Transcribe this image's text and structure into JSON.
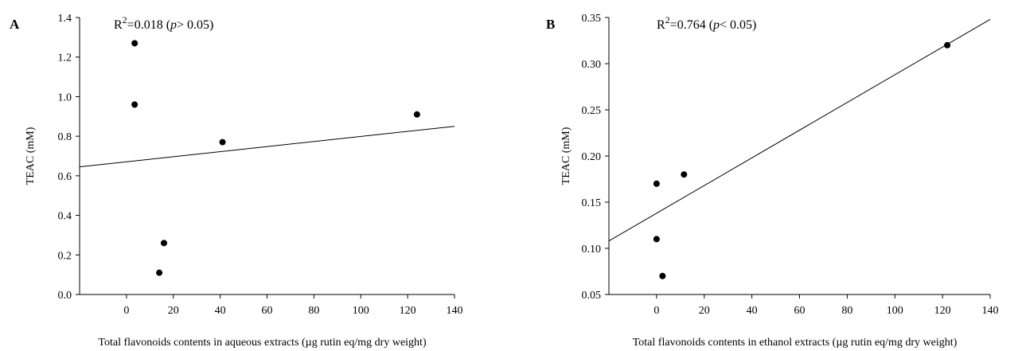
{
  "chart_data": [
    {
      "type": "scatter",
      "panel_label": "A",
      "annotation": {
        "prefix": "R",
        "sup": "2",
        "value": "=0.018 (",
        "p_italic": "p",
        "rest": "> 0.05)"
      },
      "xlabel": "Total flavonoids contents in aqueous extracts (µg rutin eq/mg dry weight)",
      "ylabel": "TEAC (mM)",
      "xlim": [
        -20,
        140
      ],
      "ylim": [
        0.0,
        1.4
      ],
      "xticks": [
        "0",
        "20",
        "40",
        "60",
        "80",
        "100",
        "120",
        "140"
      ],
      "yticks": [
        "0.0",
        "0.2",
        "0.4",
        "0.6",
        "0.8",
        "1.0",
        "1.2",
        "1.4"
      ],
      "points": [
        {
          "x": 3.5,
          "y": 1.27
        },
        {
          "x": 3.5,
          "y": 0.96
        },
        {
          "x": 41,
          "y": 0.77
        },
        {
          "x": 124,
          "y": 0.91
        },
        {
          "x": 16,
          "y": 0.26
        },
        {
          "x": 14,
          "y": 0.11
        }
      ],
      "trendline": {
        "x": [
          -20,
          140
        ],
        "y": [
          0.645,
          0.85
        ]
      }
    },
    {
      "type": "scatter",
      "panel_label": "B",
      "annotation": {
        "prefix": "R",
        "sup": "2",
        "value": "=0.764 (",
        "p_italic": "p",
        "rest": "< 0.05)"
      },
      "xlabel": "Total flavonoids contents  in ethanol extracts (µg rutin eq/mg dry weight)",
      "ylabel": "TEAC (mM)",
      "xlim": [
        -20,
        140
      ],
      "ylim": [
        0.05,
        0.35
      ],
      "xticks": [
        "0",
        "20",
        "40",
        "60",
        "80",
        "100",
        "120",
        "140"
      ],
      "yticks": [
        "0.05",
        "0.10",
        "0.15",
        "0.20",
        "0.25",
        "0.30",
        "0.35"
      ],
      "points": [
        {
          "x": 0,
          "y": 0.17
        },
        {
          "x": 11.5,
          "y": 0.18
        },
        {
          "x": 0,
          "y": 0.11
        },
        {
          "x": 2.5,
          "y": 0.07
        },
        {
          "x": 122,
          "y": 0.32
        }
      ],
      "trendline": {
        "x": [
          -20,
          140
        ],
        "y": [
          0.108,
          0.348
        ]
      }
    }
  ]
}
